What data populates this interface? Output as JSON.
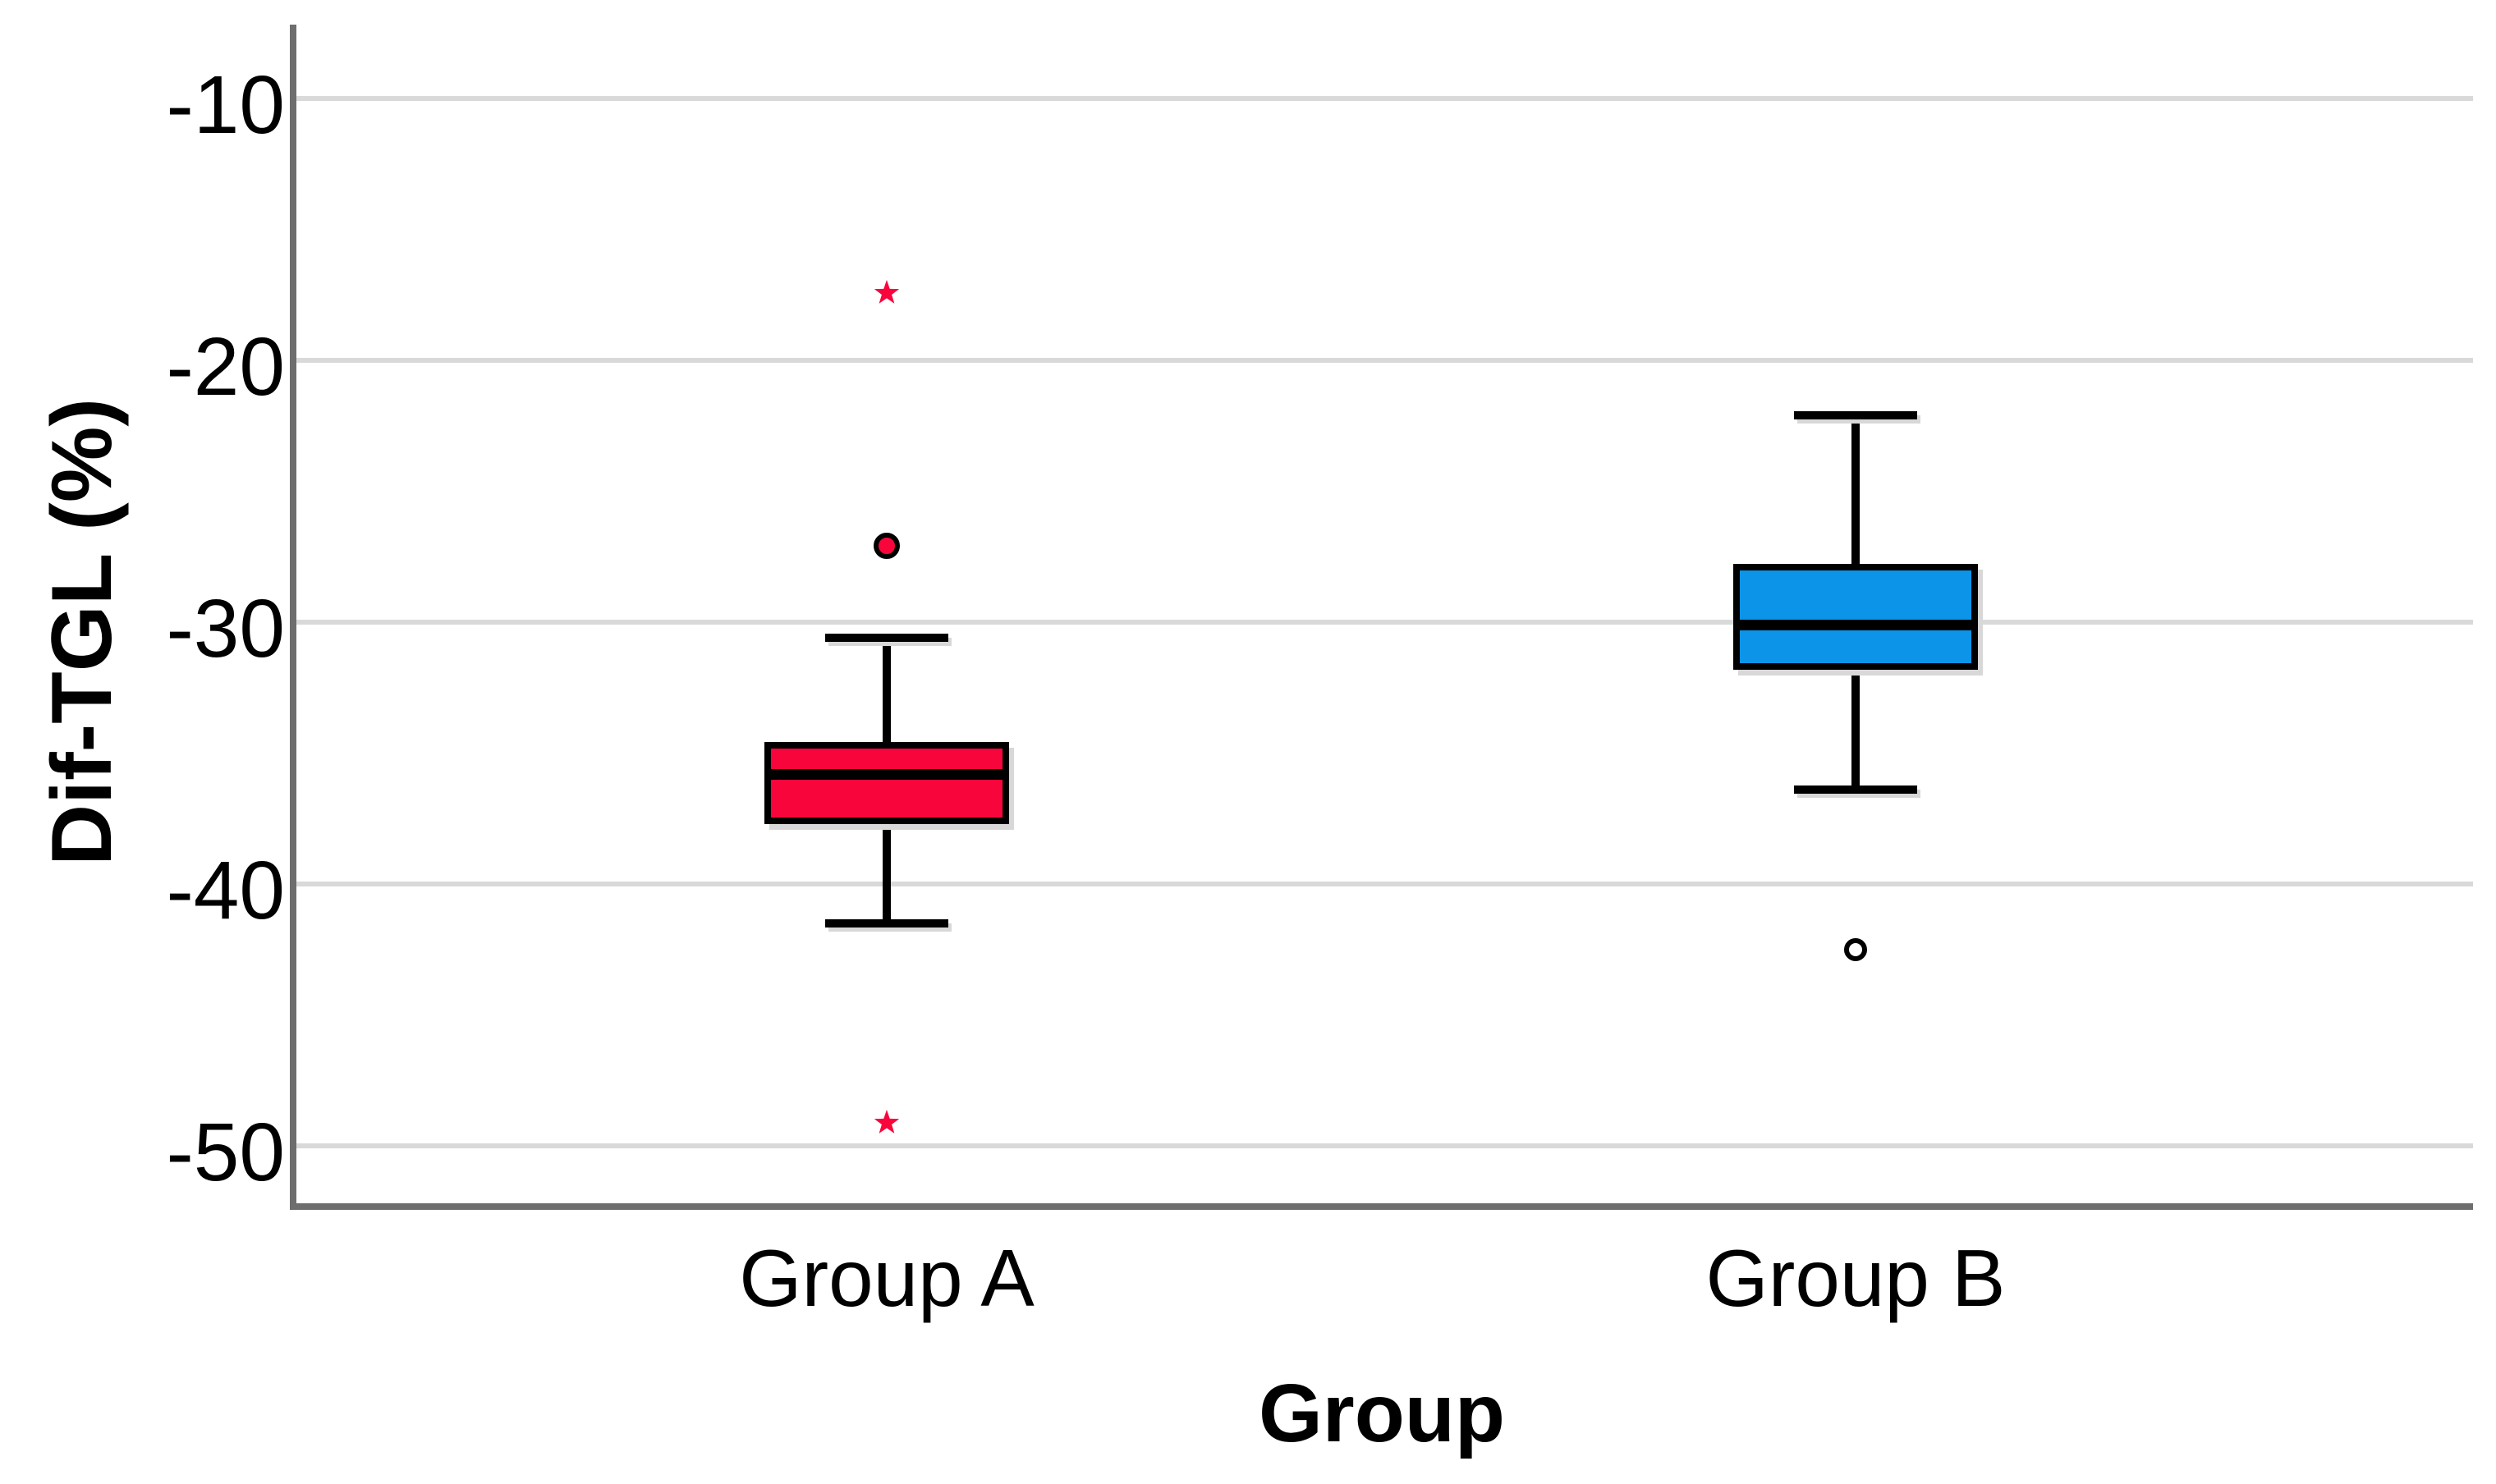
{
  "chart_data": {
    "type": "boxplot",
    "title": "",
    "xlabel": "Group",
    "ylabel": "Dif-TGL (%)",
    "categories": [
      "Group A",
      "Group B"
    ],
    "y_ticks": [
      -10,
      -20,
      -30,
      -40,
      -50
    ],
    "ylim": [
      -52.3,
      -7.2
    ],
    "grid": "horizontal",
    "legend": "none",
    "series": [
      {
        "name": "Group A",
        "color": "#F8053C",
        "q3": -34.7,
        "median": -35.8,
        "q1": -37.6,
        "whisker_high": -30.6,
        "whisker_low": -41.5,
        "outliers": [
          {
            "value": -17.4,
            "symbol": "star"
          },
          {
            "value": -27.1,
            "symbol": "filled-circle"
          },
          {
            "value": -49.1,
            "symbol": "star"
          }
        ]
      },
      {
        "name": "Group B",
        "color": "#0B94E8",
        "q3": -27.9,
        "median": -30.1,
        "q1": -31.7,
        "whisker_high": -22.1,
        "whisker_low": -36.4,
        "outliers": [
          {
            "value": -42.5,
            "symbol": "open-circle"
          }
        ]
      }
    ]
  },
  "colors": {
    "gridline": "#D9D9D9",
    "axis": "#6E6E6E",
    "text": "#000000",
    "background": "#FFFFFF"
  }
}
